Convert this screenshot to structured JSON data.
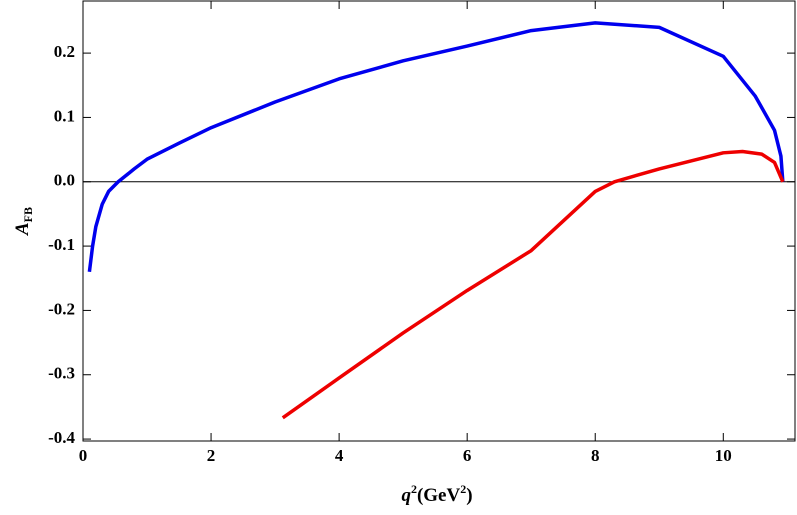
{
  "chart_data": {
    "type": "line",
    "x_label": [
      "q",
      "2",
      "(GeV",
      "2",
      ")"
    ],
    "y_label": [
      "A",
      "FB"
    ],
    "xlim": [
      0,
      11.12
    ],
    "ylim": [
      -0.403,
      0.281
    ],
    "xticks": [
      0,
      2,
      4,
      6,
      8,
      10
    ],
    "yticks": [
      -0.4,
      -0.3,
      -0.2,
      -0.1,
      {
        "value": 0,
        "label": "0.0"
      },
      0.1,
      0.2
    ],
    "series": [
      {
        "color": "#0000ee",
        "x": [
          0.1,
          0.15,
          0.2,
          0.3,
          0.4,
          0.55,
          0.8,
          1,
          1.5,
          2,
          3,
          4,
          5,
          6,
          7,
          8,
          9,
          10,
          10.5,
          10.8,
          10.9,
          10.93
        ],
        "values": [
          -0.14,
          -0.1,
          -0.07,
          -0.035,
          -0.015,
          0,
          0.02,
          0.035,
          0.06,
          0.084,
          0.124,
          0.16,
          0.188,
          0.211,
          0.235,
          0.247,
          0.24,
          0.195,
          0.133,
          0.08,
          0.04,
          0
        ]
      },
      {
        "color": "#ee0000",
        "x": [
          3.12,
          4,
          5,
          6,
          7,
          8,
          8.3,
          9,
          10,
          10.3,
          10.6,
          10.8,
          10.93
        ],
        "values": [
          -0.367,
          -0.305,
          -0.235,
          -0.169,
          -0.107,
          -0.015,
          0,
          0.02,
          0.045,
          0.047,
          0.043,
          0.03,
          0
        ]
      }
    ]
  }
}
